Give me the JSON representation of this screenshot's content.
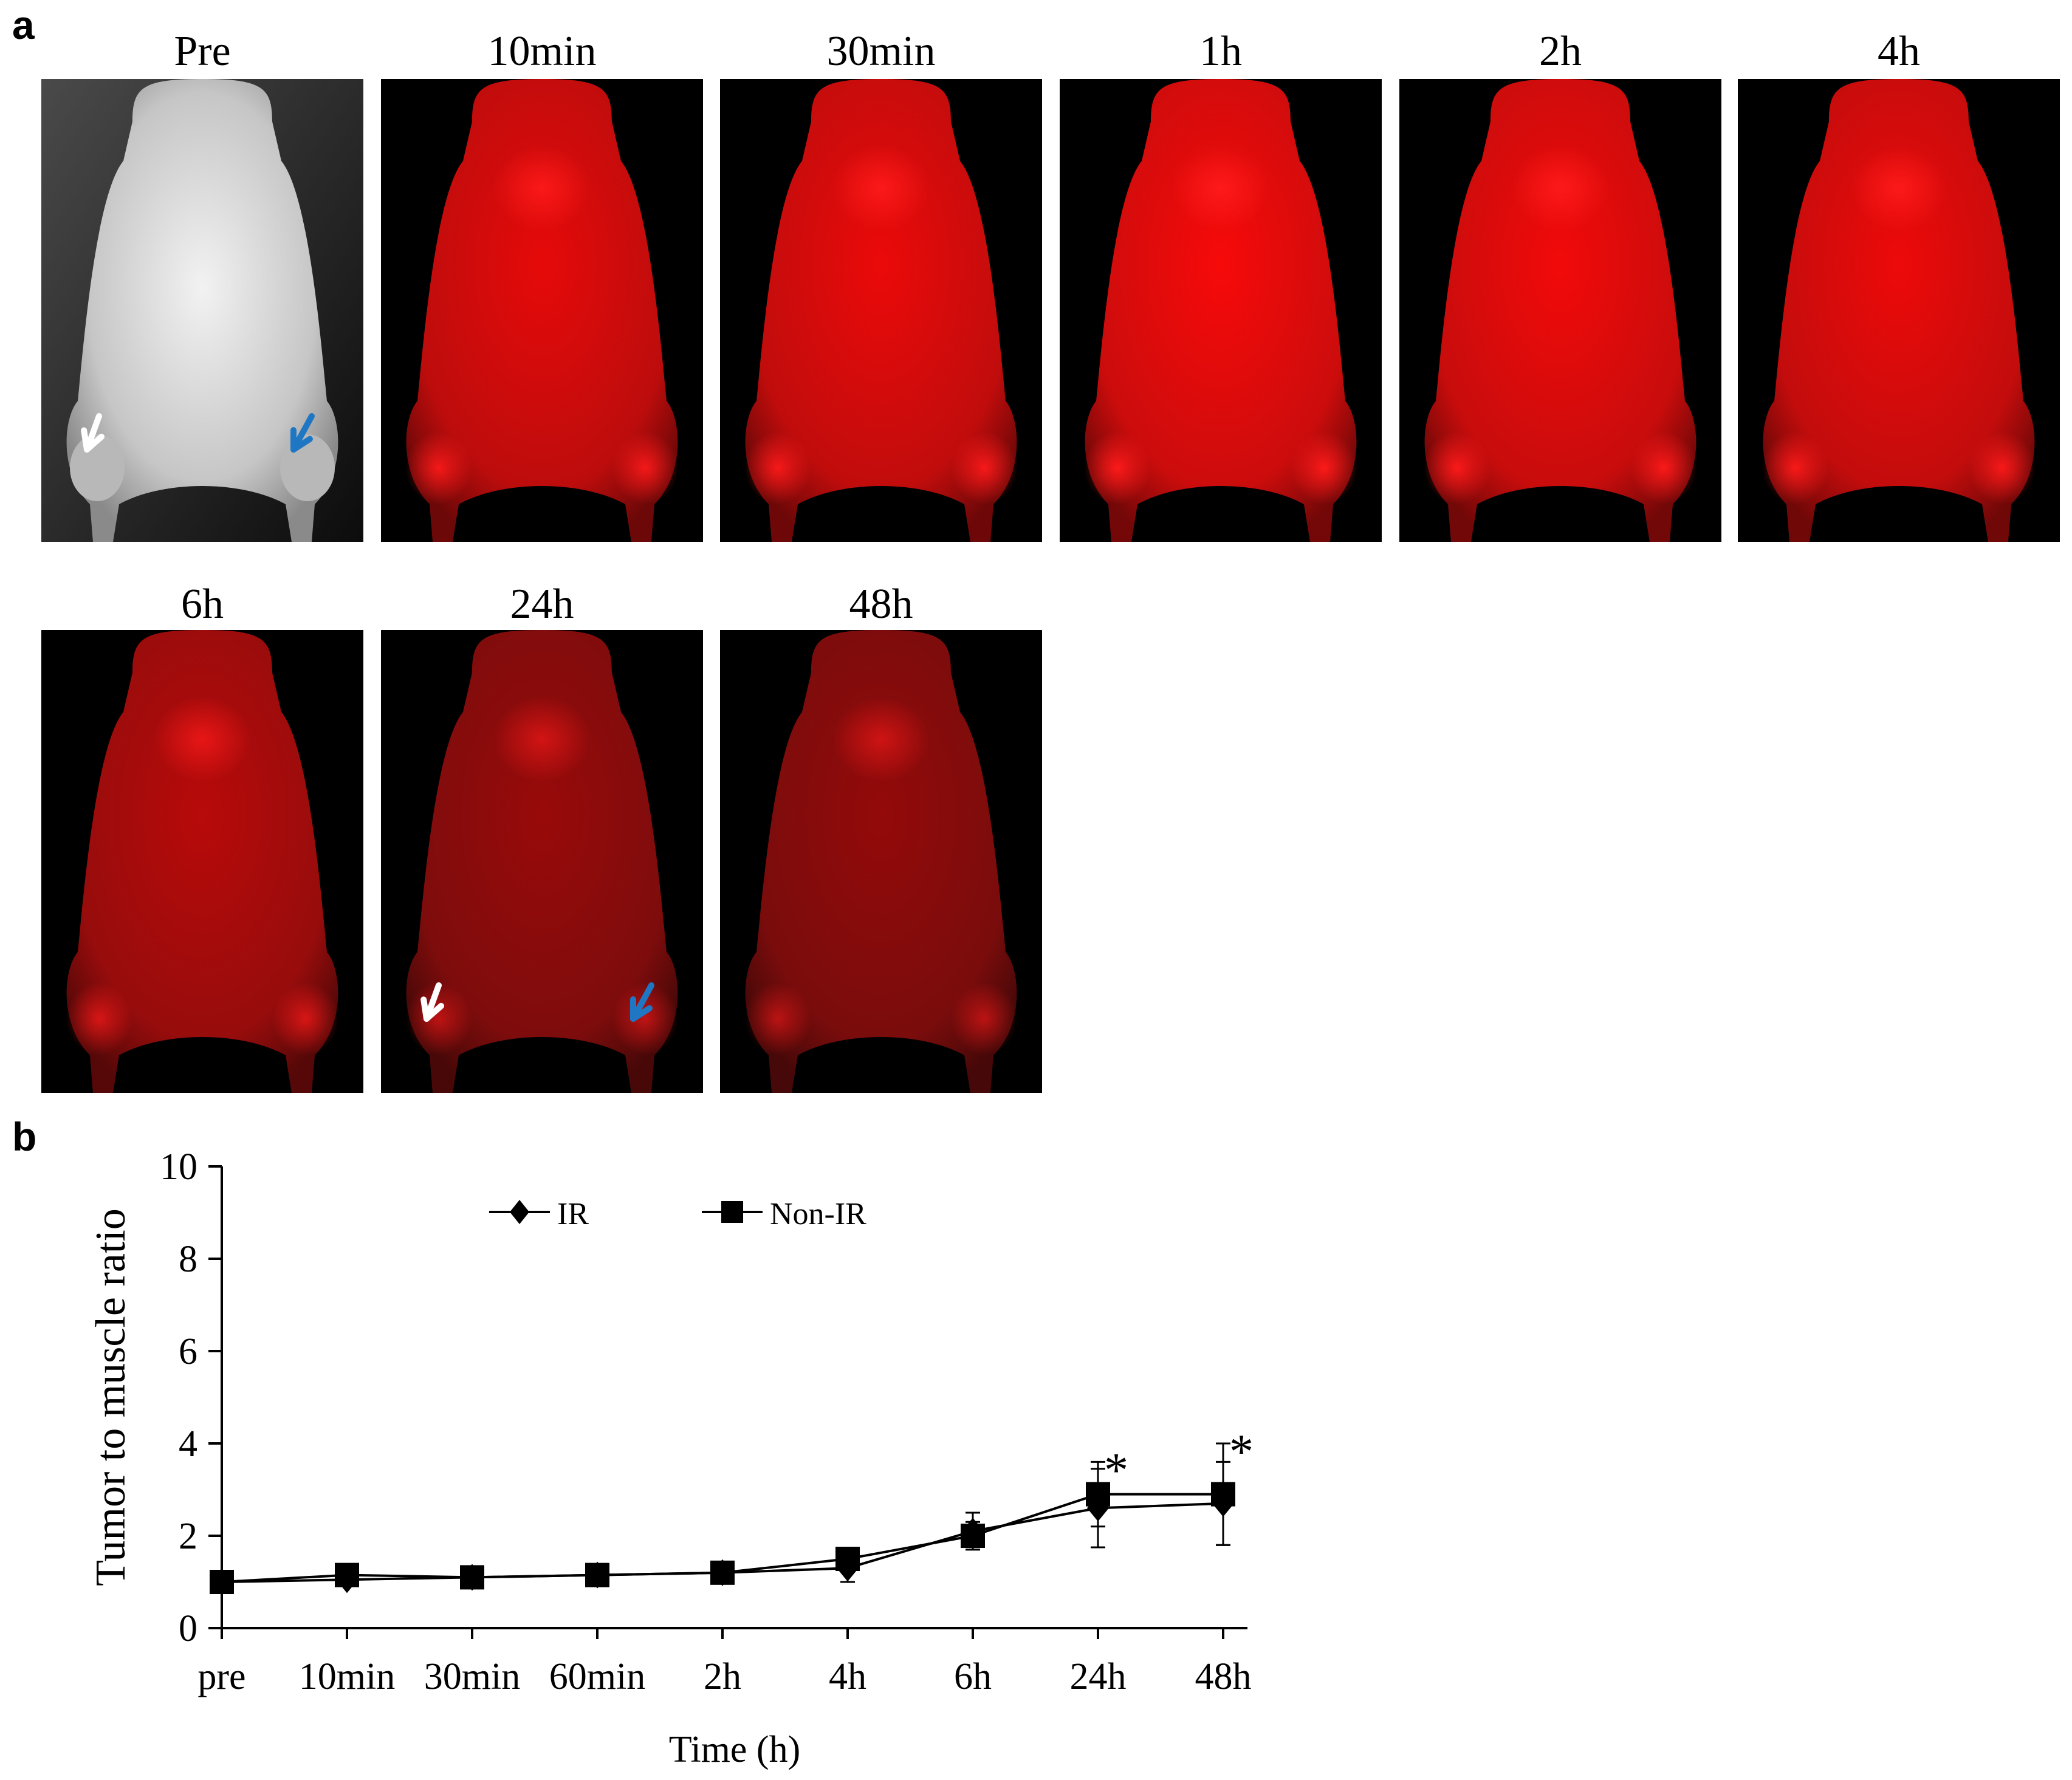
{
  "panel_a": {
    "letter": "a",
    "images": [
      {
        "label": "Pre",
        "mode": "gray",
        "arrows": true
      },
      {
        "label": "10min",
        "mode": "red",
        "intensity": 0.9
      },
      {
        "label": "30min",
        "mode": "red",
        "intensity": 0.92
      },
      {
        "label": "1h",
        "mode": "red",
        "intensity": 0.97
      },
      {
        "label": "2h",
        "mode": "red",
        "intensity": 0.95
      },
      {
        "label": "4h",
        "mode": "red",
        "intensity": 0.93
      },
      {
        "label": "6h",
        "mode": "red",
        "intensity": 0.72
      },
      {
        "label": "24h",
        "mode": "red",
        "intensity": 0.6,
        "arrows": true
      },
      {
        "label": "48h",
        "mode": "red",
        "intensity": 0.58
      }
    ],
    "arrow_colors": {
      "left": "#ffffff",
      "right": "#1f77c4"
    }
  },
  "panel_b": {
    "letter": "b"
  },
  "chart_data": {
    "type": "line",
    "categories": [
      "pre",
      "10min",
      "30min",
      "60min",
      "2h",
      "4h",
      "6h",
      "24h",
      "48h"
    ],
    "xlabel": "Time (h)",
    "ylabel": "Tumor to muscle ratio",
    "ylim": [
      0,
      10
    ],
    "yticks": [
      0,
      2,
      4,
      6,
      8,
      10
    ],
    "grid": false,
    "legend_position": "top",
    "series": [
      {
        "name": "IR",
        "marker": "diamond",
        "values": [
          1.0,
          1.05,
          1.1,
          1.15,
          1.2,
          1.3,
          2.1,
          2.6,
          2.7
        ],
        "errors": [
          0.05,
          0.05,
          0.05,
          0.05,
          0.05,
          0.3,
          0.4,
          0.85,
          0.9
        ]
      },
      {
        "name": "Non-IR",
        "marker": "square",
        "values": [
          1.0,
          1.15,
          1.1,
          1.15,
          1.2,
          1.5,
          2.0,
          2.9,
          2.9
        ],
        "errors": [
          0.05,
          0.05,
          0.05,
          0.05,
          0.05,
          0.2,
          0.3,
          0.7,
          1.1
        ]
      }
    ],
    "annotations": [
      {
        "text": "*",
        "category": "24h"
      },
      {
        "text": "*",
        "category": "48h"
      }
    ],
    "color": "#000000"
  }
}
